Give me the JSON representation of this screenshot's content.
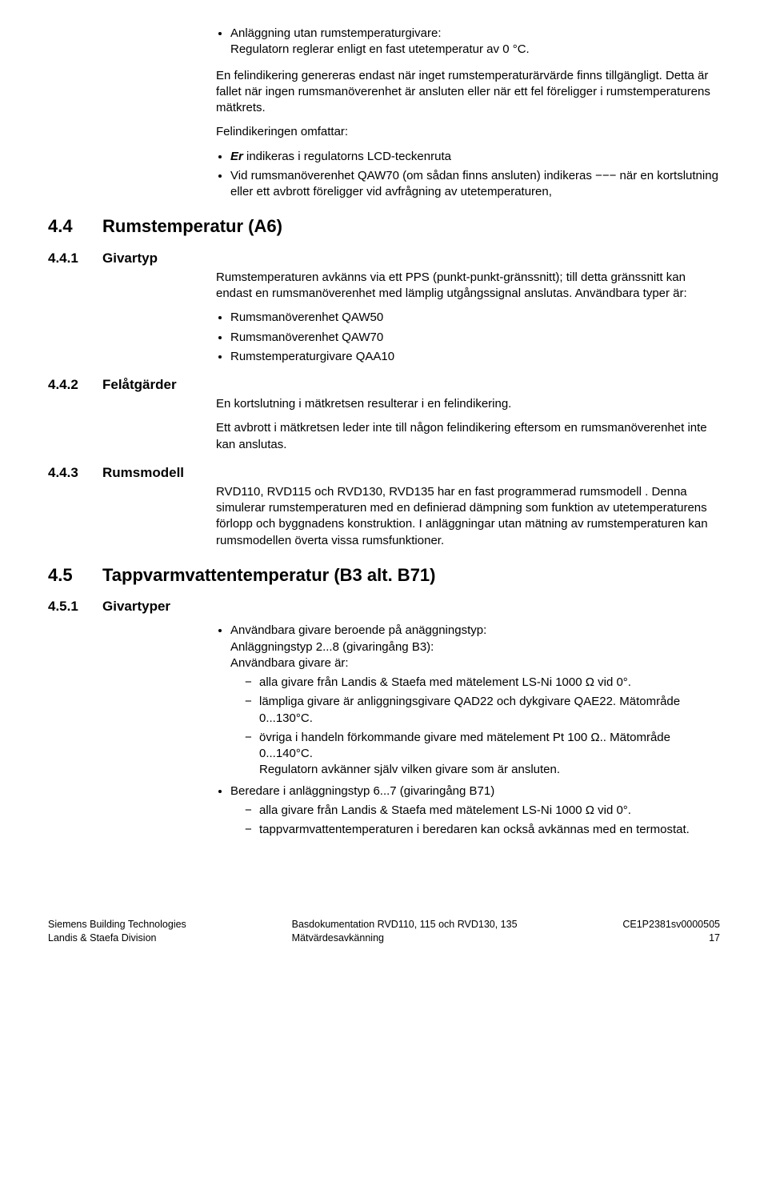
{
  "intro": {
    "bullet1_a": "Anläggning utan rumstemperaturgivare:",
    "bullet1_b": "Regulatorn reglerar enligt en fast utetemperatur av 0 °C.",
    "p1": "En felindikering genereras endast när inget rumstemperaturärvärde finns tillgängligt. Detta är fallet när ingen rumsmanöverenhet är ansluten eller när ett fel föreligger i rumstemperaturens mätkrets.",
    "p2": "Felindikeringen omfattar:",
    "bullet2_er": "Er",
    "bullet2_rest": " indikeras i regulatorns LCD-teckenruta",
    "bullet3": "Vid rumsmanöverenhet QAW70 (om sådan finns ansluten) indikeras  −−−  när en kortslutning eller ett avbrott föreligger vid avfrågning av utetemperaturen,"
  },
  "s44": {
    "num": "4.4",
    "title": "Rumstemperatur (A6)"
  },
  "s441": {
    "num": "4.4.1",
    "title": "Givartyp",
    "p1": "Rumstemperaturen avkänns via ett PPS (punkt-punkt-gränssnitt); till detta gränssnitt kan endast en rumsmanöverenhet med lämplig utgångssignal anslutas. Användbara typer är:",
    "b1": "Rumsmanöverenhet QAW50",
    "b2": "Rumsmanöverenhet QAW70",
    "b3": "Rumstemperaturgivare QAA10"
  },
  "s442": {
    "num": "4.4.2",
    "title": "Felåtgärder",
    "p1": "En kortslutning i mätkretsen resulterar i en felindikering.",
    "p2": "Ett avbrott i mätkretsen leder inte till någon felindikering eftersom en rumsmanöverenhet inte kan anslutas."
  },
  "s443": {
    "num": "4.4.3",
    "title": "Rumsmodell",
    "p1": "RVD110, RVD115 och RVD130, RVD135 har en fast programmerad rumsmodell . Denna simulerar rumstemperaturen med en definierad dämpning som funktion av utetemperaturens förlopp och byggnadens konstruktion. I anläggningar utan mätning av rumstemperaturen kan rumsmodellen överta vissa rumsfunktioner."
  },
  "s45": {
    "num": "4.5",
    "title": "Tappvarmvattentemperatur (B3 alt. B71)"
  },
  "s451": {
    "num": "4.5.1",
    "title": "Givartyper",
    "b1_l1": "Användbara givare beroende på anäggningstyp:",
    "b1_l2": "Anläggningstyp 2...8 (givaringång B3):",
    "b1_l3": "Användbara givare är:",
    "b1_d1": "alla givare från Landis & Staefa med mätelement LS-Ni 1000 Ω vid 0°.",
    "b1_d2": "lämpliga givare är anliggningsgivare QAD22 och dykgivare QAE22. Mätområde 0...130°C.",
    "b1_d3": "övriga i handeln förkommande givare med mätelement Pt 100 Ω.. Mätområde 0...140°C.",
    "b1_d3_b": "Regulatorn avkänner själv vilken givare som är ansluten.",
    "b2": "Beredare i anläggningstyp 6...7 (givaringång B71)",
    "b2_d1": "alla givare från Landis & Staefa med mätelement LS-Ni 1000 Ω vid 0°.",
    "b2_d2": "tappvarmvattentemperaturen i beredaren kan också avkännas med en termostat."
  },
  "footer": {
    "l1": "Siemens Building Technologies",
    "l2": "Landis & Staefa Division",
    "c1": "Basdokumentation RVD110, 115 och RVD130, 135",
    "c2": "Mätvärdesavkänning",
    "r1": "CE1P2381sv0000505",
    "r2": "17"
  }
}
